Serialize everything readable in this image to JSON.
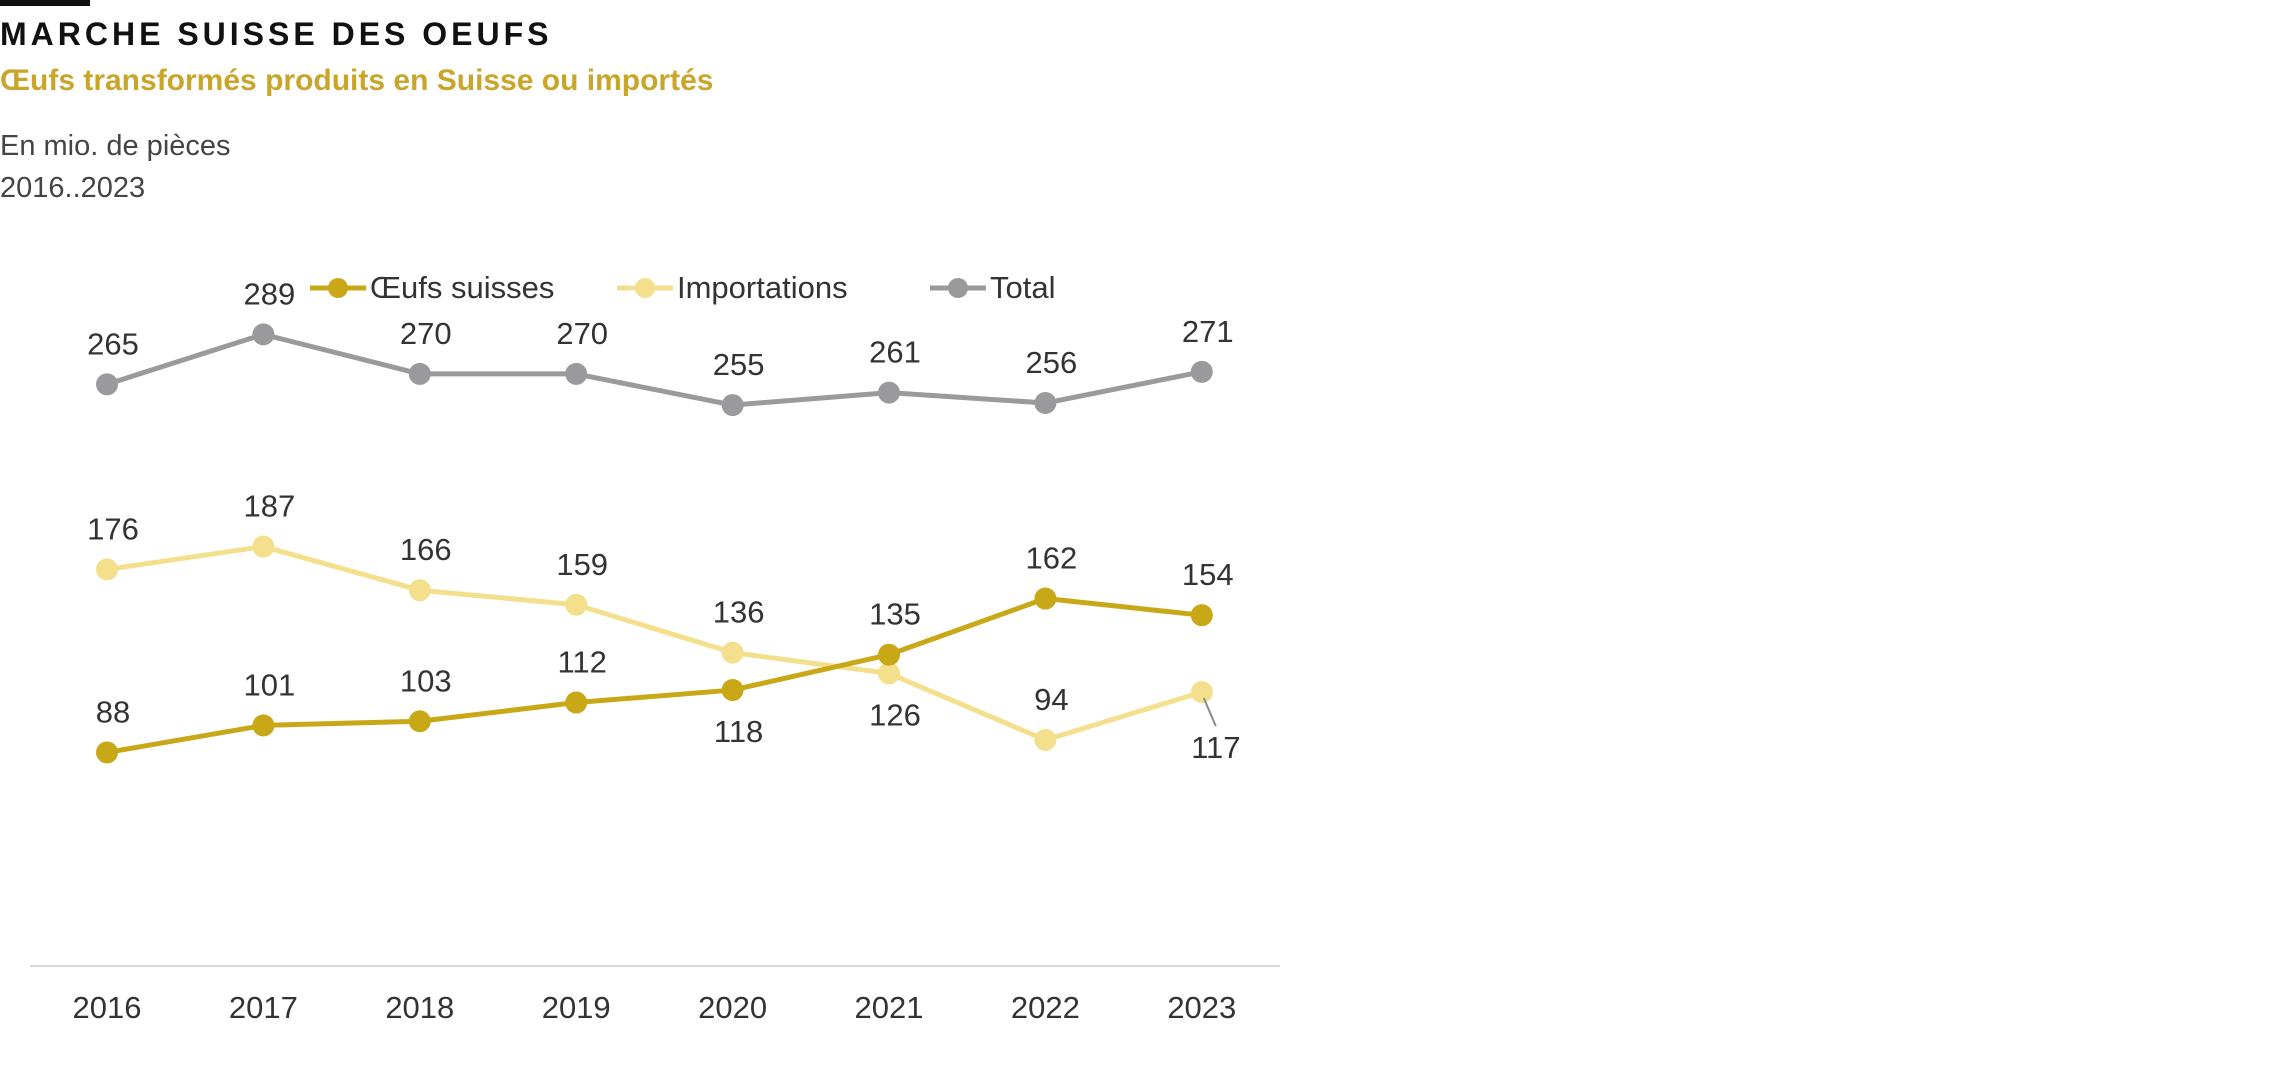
{
  "header": {
    "title": "MARCHE SUISSE DES OEUFS",
    "subtitle": "Œufs transformés produits en Suisse ou importés",
    "unit": "En mio. de pièces",
    "period": "2016..2023"
  },
  "colors": {
    "subtitle": "#c9a52a",
    "swiss": "#c9a818",
    "imports": "#f4df8c",
    "total": "#9a9a9c",
    "axis": "#d6d6d6",
    "text": "#333333"
  },
  "chart_data": {
    "type": "line",
    "categories": [
      "2016",
      "2017",
      "2018",
      "2019",
      "2020",
      "2021",
      "2022",
      "2023"
    ],
    "ylim": [
      0,
      310
    ],
    "grid": false,
    "legend": "top",
    "series": [
      {
        "name": "Œufs suisses",
        "color": "#c9a818",
        "values": [
          88,
          101,
          103,
          112,
          118,
          135,
          162,
          154
        ]
      },
      {
        "name": "Importations",
        "color": "#f4df8c",
        "values": [
          176,
          187,
          166,
          159,
          136,
          126,
          94,
          117
        ]
      },
      {
        "name": "Total",
        "color": "#9a9a9c",
        "values": [
          265,
          289,
          270,
          270,
          255,
          261,
          256,
          271
        ]
      }
    ]
  }
}
